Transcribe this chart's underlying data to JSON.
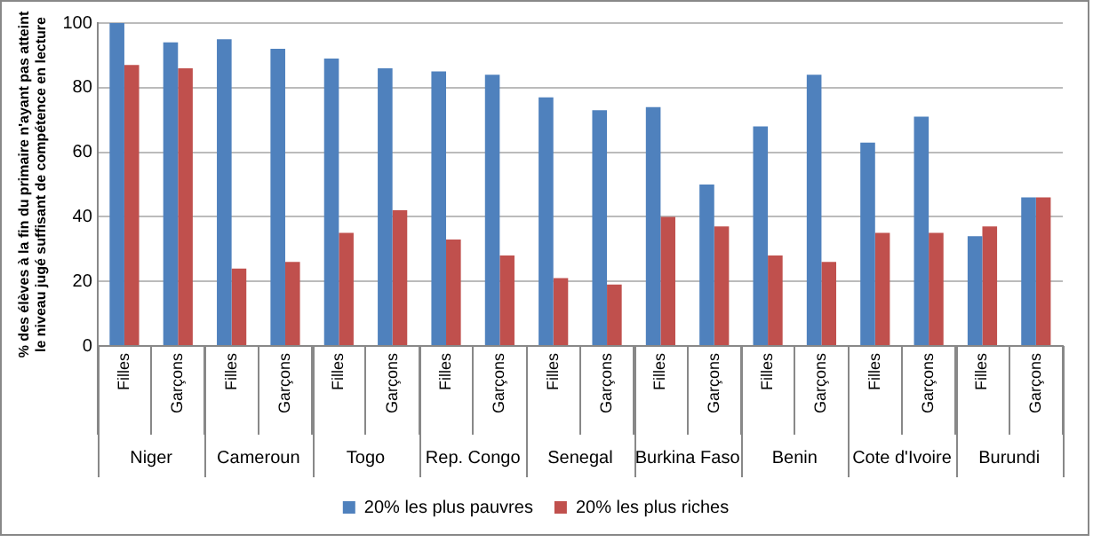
{
  "chart_data": {
    "type": "bar",
    "ylabel": "% des élèves à la fin du primaire n'ayant pas atteint le niveau jugé suffisant de compétence en lecture",
    "categories": [
      "Filles",
      "Garçons",
      "Filles",
      "Garçons",
      "Filles",
      "Garçons",
      "Filles",
      "Garçons",
      "Filles",
      "Garçons",
      "Filles",
      "Garçons",
      "Filles",
      "Garçons",
      "Filles",
      "Garçons",
      "Filles",
      "Garçons"
    ],
    "annotations": [
      "Niger",
      "Cameroun",
      "Togo",
      "Rep. Congo",
      "Senegal",
      "Burkina Faso",
      "Benin",
      "Cote d'Ivoire",
      "Burundi"
    ],
    "series": [
      {
        "name": "20% les plus pauvres",
        "color": "#4f81bd",
        "values": [
          100,
          94,
          95,
          92,
          89,
          86,
          85,
          84,
          77,
          73,
          74,
          50,
          68,
          84,
          63,
          71,
          34,
          46
        ]
      },
      {
        "name": "20% les plus riches",
        "color": "#c0504d",
        "values": [
          87,
          86,
          24,
          26,
          35,
          42,
          33,
          28,
          21,
          19,
          40,
          37,
          28,
          26,
          35,
          35,
          37,
          46
        ]
      }
    ],
    "ylim": [
      0,
      100
    ],
    "yticks": [
      0,
      20,
      40,
      60,
      80,
      100
    ],
    "grid": "y",
    "legend": "bottom"
  }
}
